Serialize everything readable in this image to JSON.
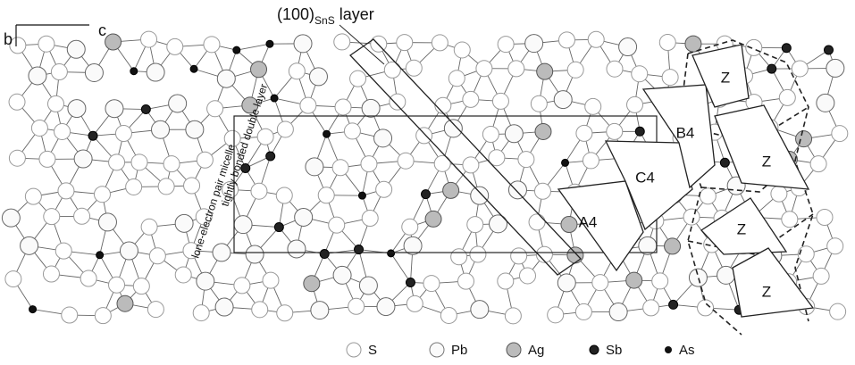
{
  "axes": {
    "b": "b",
    "c": "c"
  },
  "layer_label": {
    "main": "(100)",
    "subscript": "SnS",
    "suffix": "layer"
  },
  "annotations": [
    "tightly bonded double layer",
    "lone-electron pair micelle"
  ],
  "polyhedra": [
    "A4",
    "C4",
    "B4",
    "Z",
    "Z",
    "Z",
    "Z"
  ],
  "legend": [
    "S",
    "Pb",
    "Ag",
    "Sb",
    "As"
  ]
}
